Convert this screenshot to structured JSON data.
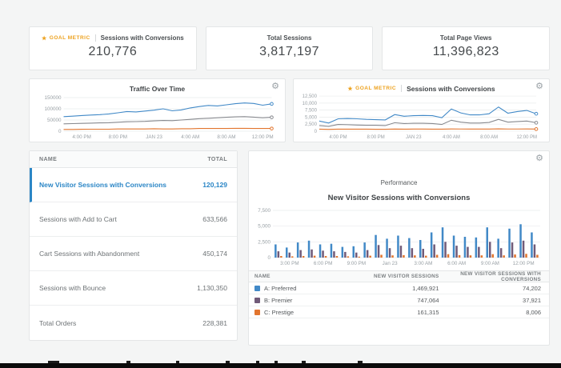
{
  "icons": {
    "gear": "⚙",
    "star": "★"
  },
  "colors": {
    "series_blue": "#4189c7",
    "series_purple": "#705a78",
    "series_gray": "#87898e",
    "series_orange": "#e2752e",
    "goal_gold": "#eda21f",
    "selected_blue": "#2b86c6"
  },
  "kpi_cards": [
    {
      "goal_label": "GOAL METRIC",
      "label": "Sessions with Conversions",
      "value": "210,776"
    },
    {
      "label": "Total Sessions",
      "value": "3,817,197"
    },
    {
      "label": "Total Page Views",
      "value": "11,396,823"
    }
  ],
  "left_table": {
    "columns": [
      "NAME",
      "TOTAL"
    ],
    "rows": [
      {
        "name": "New Visitor Sessions with Conversions",
        "total": "120,129",
        "selected": true
      },
      {
        "name": "Sessions with Add to Cart",
        "total": "633,566",
        "selected": false
      },
      {
        "name": "Cart Sessions with Abandonment",
        "total": "450,174",
        "selected": false
      },
      {
        "name": "Sessions with Bounce",
        "total": "1,130,350",
        "selected": false
      },
      {
        "name": "Total Orders",
        "total": "228,381",
        "selected": false
      }
    ]
  },
  "performance_panel": {
    "subtitle": "Performance",
    "title": "New Visitor Sessions with Conversions",
    "table": {
      "columns": [
        "NAME",
        "NEW VISITOR SESSIONS",
        "NEW VISITOR SESSIONS WITH CONVERSIONS"
      ],
      "rows": [
        {
          "name": "A: Preferred",
          "color": "#4189c7",
          "sessions": "1,469,921",
          "conversions": "74,202"
        },
        {
          "name": "B: Premier",
          "color": "#705a78",
          "sessions": "747,064",
          "conversions": "37,921"
        },
        {
          "name": "C: Prestige",
          "color": "#e2752e",
          "sessions": "161,315",
          "conversions": "8,006"
        }
      ]
    }
  },
  "chart_data": [
    {
      "id": "traffic",
      "type": "line",
      "title": "Traffic Over Time",
      "ylim": [
        0,
        150000
      ],
      "grid": true,
      "legend": "none",
      "yticks": [
        {
          "v": 0,
          "label": "0"
        },
        {
          "v": 50000,
          "label": "50000"
        },
        {
          "v": 100000,
          "label": "100000"
        },
        {
          "v": 150000,
          "label": "150000"
        }
      ],
      "xticks": [
        {
          "i": 2,
          "label": "4:00 PM"
        },
        {
          "i": 6,
          "label": "8:00 PM"
        },
        {
          "i": 10,
          "label": "JAN 23"
        },
        {
          "i": 14,
          "label": "4:00 AM"
        },
        {
          "i": 18,
          "label": "8:00 AM"
        },
        {
          "i": 22,
          "label": "12:00 PM"
        }
      ],
      "series": [
        {
          "name": "series-1",
          "color": "#4189c7",
          "values": [
            65000,
            67000,
            70000,
            72000,
            74000,
            77000,
            82000,
            88000,
            86000,
            90000,
            94000,
            100000,
            91000,
            95000,
            104000,
            110000,
            115000,
            113000,
            118000,
            123000,
            126000,
            124000,
            116000,
            122000
          ]
        },
        {
          "name": "series-2",
          "color": "#87898e",
          "values": [
            33000,
            34000,
            35000,
            36000,
            37000,
            38000,
            40000,
            42000,
            43000,
            44000,
            46000,
            48000,
            47000,
            50000,
            53000,
            56000,
            58000,
            60000,
            62000,
            64000,
            65000,
            63000,
            60000,
            62000
          ]
        },
        {
          "name": "series-3",
          "color": "#e2752e",
          "values": [
            8000,
            8000,
            8500,
            9000,
            9000,
            9000,
            10000,
            10000,
            10000,
            10000,
            11000,
            10000,
            10000,
            11000,
            11000,
            12000,
            12000,
            12000,
            12000,
            13000,
            13000,
            12000,
            12000,
            12000
          ]
        }
      ]
    },
    {
      "id": "goal_sessions",
      "type": "line",
      "goal_label": "GOAL METRIC",
      "title": "Sessions with Conversions",
      "ylim": [
        0,
        12500
      ],
      "grid": true,
      "legend": "none",
      "yticks": [
        {
          "v": 0,
          "label": "0"
        },
        {
          "v": 2500,
          "label": "2,500"
        },
        {
          "v": 5000,
          "label": "5,000"
        },
        {
          "v": 7500,
          "label": "7,500"
        },
        {
          "v": 10000,
          "label": "10,000"
        },
        {
          "v": 12500,
          "label": "12,500"
        }
      ],
      "xticks": [
        {
          "i": 2,
          "label": "4:00 PM"
        },
        {
          "i": 6,
          "label": "8:00 PM"
        },
        {
          "i": 10,
          "label": "JAN 23"
        },
        {
          "i": 14,
          "label": "4:00 AM"
        },
        {
          "i": 18,
          "label": "8:00 AM"
        },
        {
          "i": 22,
          "label": "12:00 PM"
        }
      ],
      "series": [
        {
          "name": "series-1",
          "color": "#4189c7",
          "values": [
            3600,
            2900,
            4400,
            4500,
            4400,
            4200,
            4100,
            4000,
            5900,
            5300,
            5500,
            5600,
            5500,
            4800,
            7900,
            6500,
            5800,
            5800,
            6200,
            8600,
            6400,
            7000,
            7400,
            6200
          ]
        },
        {
          "name": "series-2",
          "color": "#87898e",
          "values": [
            2000,
            1700,
            2400,
            2300,
            2200,
            2100,
            2100,
            2000,
            3000,
            2700,
            2800,
            2800,
            2700,
            2400,
            3900,
            3200,
            2900,
            2900,
            3100,
            4200,
            3200,
            3400,
            3600,
            3000
          ]
        },
        {
          "name": "series-3",
          "color": "#e2752e",
          "values": [
            700,
            650,
            700,
            720,
            700,
            700,
            680,
            680,
            750,
            720,
            730,
            730,
            720,
            700,
            800,
            760,
            740,
            740,
            750,
            820,
            760,
            780,
            800,
            740
          ]
        }
      ]
    },
    {
      "id": "performance_bars",
      "type": "bar",
      "title": "New Visitor Sessions with Conversions",
      "ylim": [
        0,
        7500
      ],
      "grid": true,
      "legend": "table-below",
      "yticks": [
        {
          "v": 0,
          "label": "0"
        },
        {
          "v": 2500,
          "label": "2,500"
        },
        {
          "v": 5000,
          "label": "5,000"
        },
        {
          "v": 7500,
          "label": "7,500"
        }
      ],
      "xticks": [
        {
          "i": 1,
          "label": "3:00 PM"
        },
        {
          "i": 4,
          "label": "6:00 PM"
        },
        {
          "i": 7,
          "label": "9:00 PM"
        },
        {
          "i": 10,
          "label": "Jan 23"
        },
        {
          "i": 13,
          "label": "3:00 AM"
        },
        {
          "i": 16,
          "label": "6:00 AM"
        },
        {
          "i": 19,
          "label": "9:00 AM"
        },
        {
          "i": 22,
          "label": "12:00 PM"
        }
      ],
      "series": [
        {
          "name": "A: Preferred",
          "color": "#4189c7",
          "values": [
            2100,
            1600,
            2400,
            2700,
            2100,
            2200,
            1700,
            1800,
            2400,
            3600,
            3000,
            3500,
            3100,
            2800,
            4000,
            4800,
            3500,
            3300,
            3200,
            4800,
            3000,
            4600,
            5300,
            4000
          ]
        },
        {
          "name": "B: Premier",
          "color": "#705a78",
          "values": [
            1000,
            800,
            1200,
            1300,
            1100,
            1000,
            900,
            800,
            1200,
            2000,
            1500,
            1900,
            1500,
            1400,
            2100,
            2500,
            1900,
            1700,
            1700,
            2500,
            1500,
            2400,
            2700,
            2100
          ]
        },
        {
          "name": "C: Prestige",
          "color": "#e2752e",
          "values": [
            250,
            200,
            250,
            300,
            250,
            250,
            200,
            150,
            300,
            450,
            350,
            400,
            350,
            300,
            450,
            550,
            400,
            350,
            350,
            550,
            350,
            500,
            600,
            450
          ]
        }
      ]
    }
  ],
  "bottom_bar": {
    "marks": [
      {
        "x": 60,
        "w": 14
      },
      {
        "x": 158,
        "w": 5
      },
      {
        "x": 220,
        "w": 4
      },
      {
        "x": 282,
        "w": 5
      },
      {
        "x": 320,
        "w": 4
      },
      {
        "x": 343,
        "w": 4
      },
      {
        "x": 377,
        "w": 5
      },
      {
        "x": 447,
        "w": 6
      }
    ]
  }
}
